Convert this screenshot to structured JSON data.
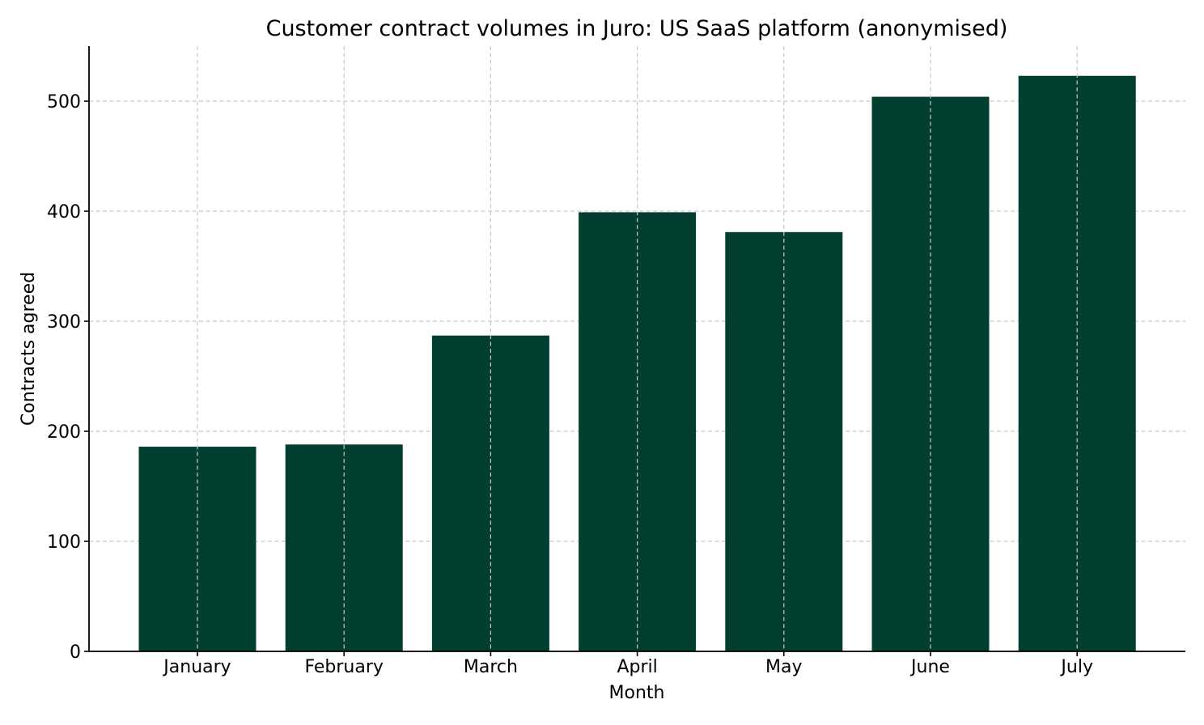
{
  "chart_data": {
    "type": "bar",
    "title": "Customer contract volumes in Juro: US SaaS platform (anonymised)",
    "xlabel": "Month",
    "ylabel": "Contracts agreed",
    "categories": [
      "January",
      "February",
      "March",
      "April",
      "May",
      "June",
      "July"
    ],
    "values": [
      186,
      188,
      287,
      399,
      381,
      504,
      523
    ],
    "ylim": [
      0,
      550
    ],
    "yticks": [
      0,
      100,
      200,
      300,
      400,
      500
    ],
    "grid": true,
    "grid_style": "dashed",
    "bar_color": "#033F30",
    "legend": "none"
  }
}
